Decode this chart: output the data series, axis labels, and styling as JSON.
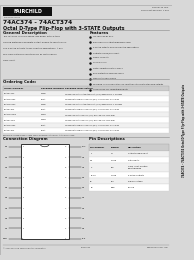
{
  "page_bg": "#d8d8d8",
  "inner_bg": "#ffffff",
  "border_color": "#999999",
  "title_line1": "74AC374 - 74ACT374",
  "title_line2": "Octal D-Type Flip-Flop with 3-STATE Outputs",
  "section_general": "General Description",
  "section_features": "Features",
  "section_ordering": "Ordering Code:",
  "section_connection": "Connection Diagram",
  "section_pin": "Pin Descriptions",
  "general_text": "The 74AC374 is a high-speed, low-power octal D-type\nflip-flop featuring a separate Output Enable to send the flip-\nflop 3-STATE outputs to bus-oriented applications. It will\nonly clock data from inputs D0-D7 as controlled by\nclock input.",
  "features_items": [
    "ICC reduced by 50%",
    "Balanced line output impedance level",
    "3-STATE outputs for bus-oriented applications",
    "Outputs source/sink 24mA",
    "Flow-TTL inputs",
    "100% burn-in",
    "Data compatible with 74S374",
    "ESD protection exceeds 2000V",
    "Manufactured in CMOS",
    "Specified for 8 combinations of input transitions with standard outputs",
    "ACT374 has TTL compatible inputs"
  ],
  "ordering_headers": [
    "Order Number",
    "Package Number",
    "Package Description"
  ],
  "ordering_rows": [
    [
      "74AC374SC",
      "M20B",
      "20-Lead Small Outline Integrated Circuit (SOIC), JEDEC MS-013, 0.300 Wide"
    ],
    [
      "74ACT374PC",
      "N20A",
      "20-Lead Plastic Dual-In-Line Package (PDIP), JEDEC MS-001, 0.300 Wide"
    ],
    [
      "74ACT374SC",
      "M20B",
      "20-Lead Small Outline Integrated Circuit (SOIC), JEDEC MS-013, 0.300 Wide"
    ],
    [
      "74AC374PC",
      "N20A",
      "20-Lead Plastic Dual-In-Line Package (PDIP), JEDEC MS-001, 0.300 Wide"
    ],
    [
      "74ACT374SJX",
      "M20D",
      "20-Lead Small Outline Package (SOP), JEDEC MS-013, 0.300 Wide"
    ],
    [
      "74AC374SJX",
      "M20D",
      "20-Lead Small Outline Package (SOP), JEDEC MS-013, 0.300 Wide"
    ],
    [
      "74ACT374PC",
      "N20A",
      "20-Lead Plastic Dual-In-Line Package (PDIP), JEDEC MS-001, 0.300 Wide"
    ],
    [
      "74AC374PC",
      "N20A",
      "20-Lead Plastic Dual-In-Line Package (PDIP), JEDEC MS-001, 0.300 Wide"
    ]
  ],
  "pin_left": [
    "OE",
    "D1",
    "D2",
    "D3",
    "D4",
    "D5",
    "D6",
    "D7",
    "D8",
    "GND"
  ],
  "pin_right": [
    "VCC",
    "Q1",
    "Q2",
    "Q3",
    "Q4",
    "Q5",
    "Q6",
    "Q7",
    "Q8",
    "CLK"
  ],
  "pin_table_headers": [
    "Pin Number",
    "Symbol",
    "Description"
  ],
  "pin_table_rows": [
    [
      "1",
      "OE",
      "Output Enable Input"
    ],
    [
      "2-9",
      "D1-D8",
      "Data Inputs"
    ],
    [
      "11",
      "CLK",
      "Clock Input, Positive\nEdge-triggered"
    ],
    [
      "12-19",
      "Q1-Q8",
      "3-STATE Outputs"
    ],
    [
      "20",
      "VCC",
      "Supply Voltage"
    ],
    [
      "10",
      "GND",
      "Ground"
    ]
  ],
  "fairchild_logo_text": "FAIRCHILD",
  "doc_number": "DS009733 TBD",
  "doc_revision": "Document Revision: 1.000",
  "vertical_text": "74AC374 - 74ACT374 Octal D-Type Flip-Flop with 3-STATE Outputs",
  "footer_left": "© 2000 Fairchild Semiconductor Corporation",
  "footer_ds": "DS009733",
  "footer_url": "www.fairchildsemi.com"
}
